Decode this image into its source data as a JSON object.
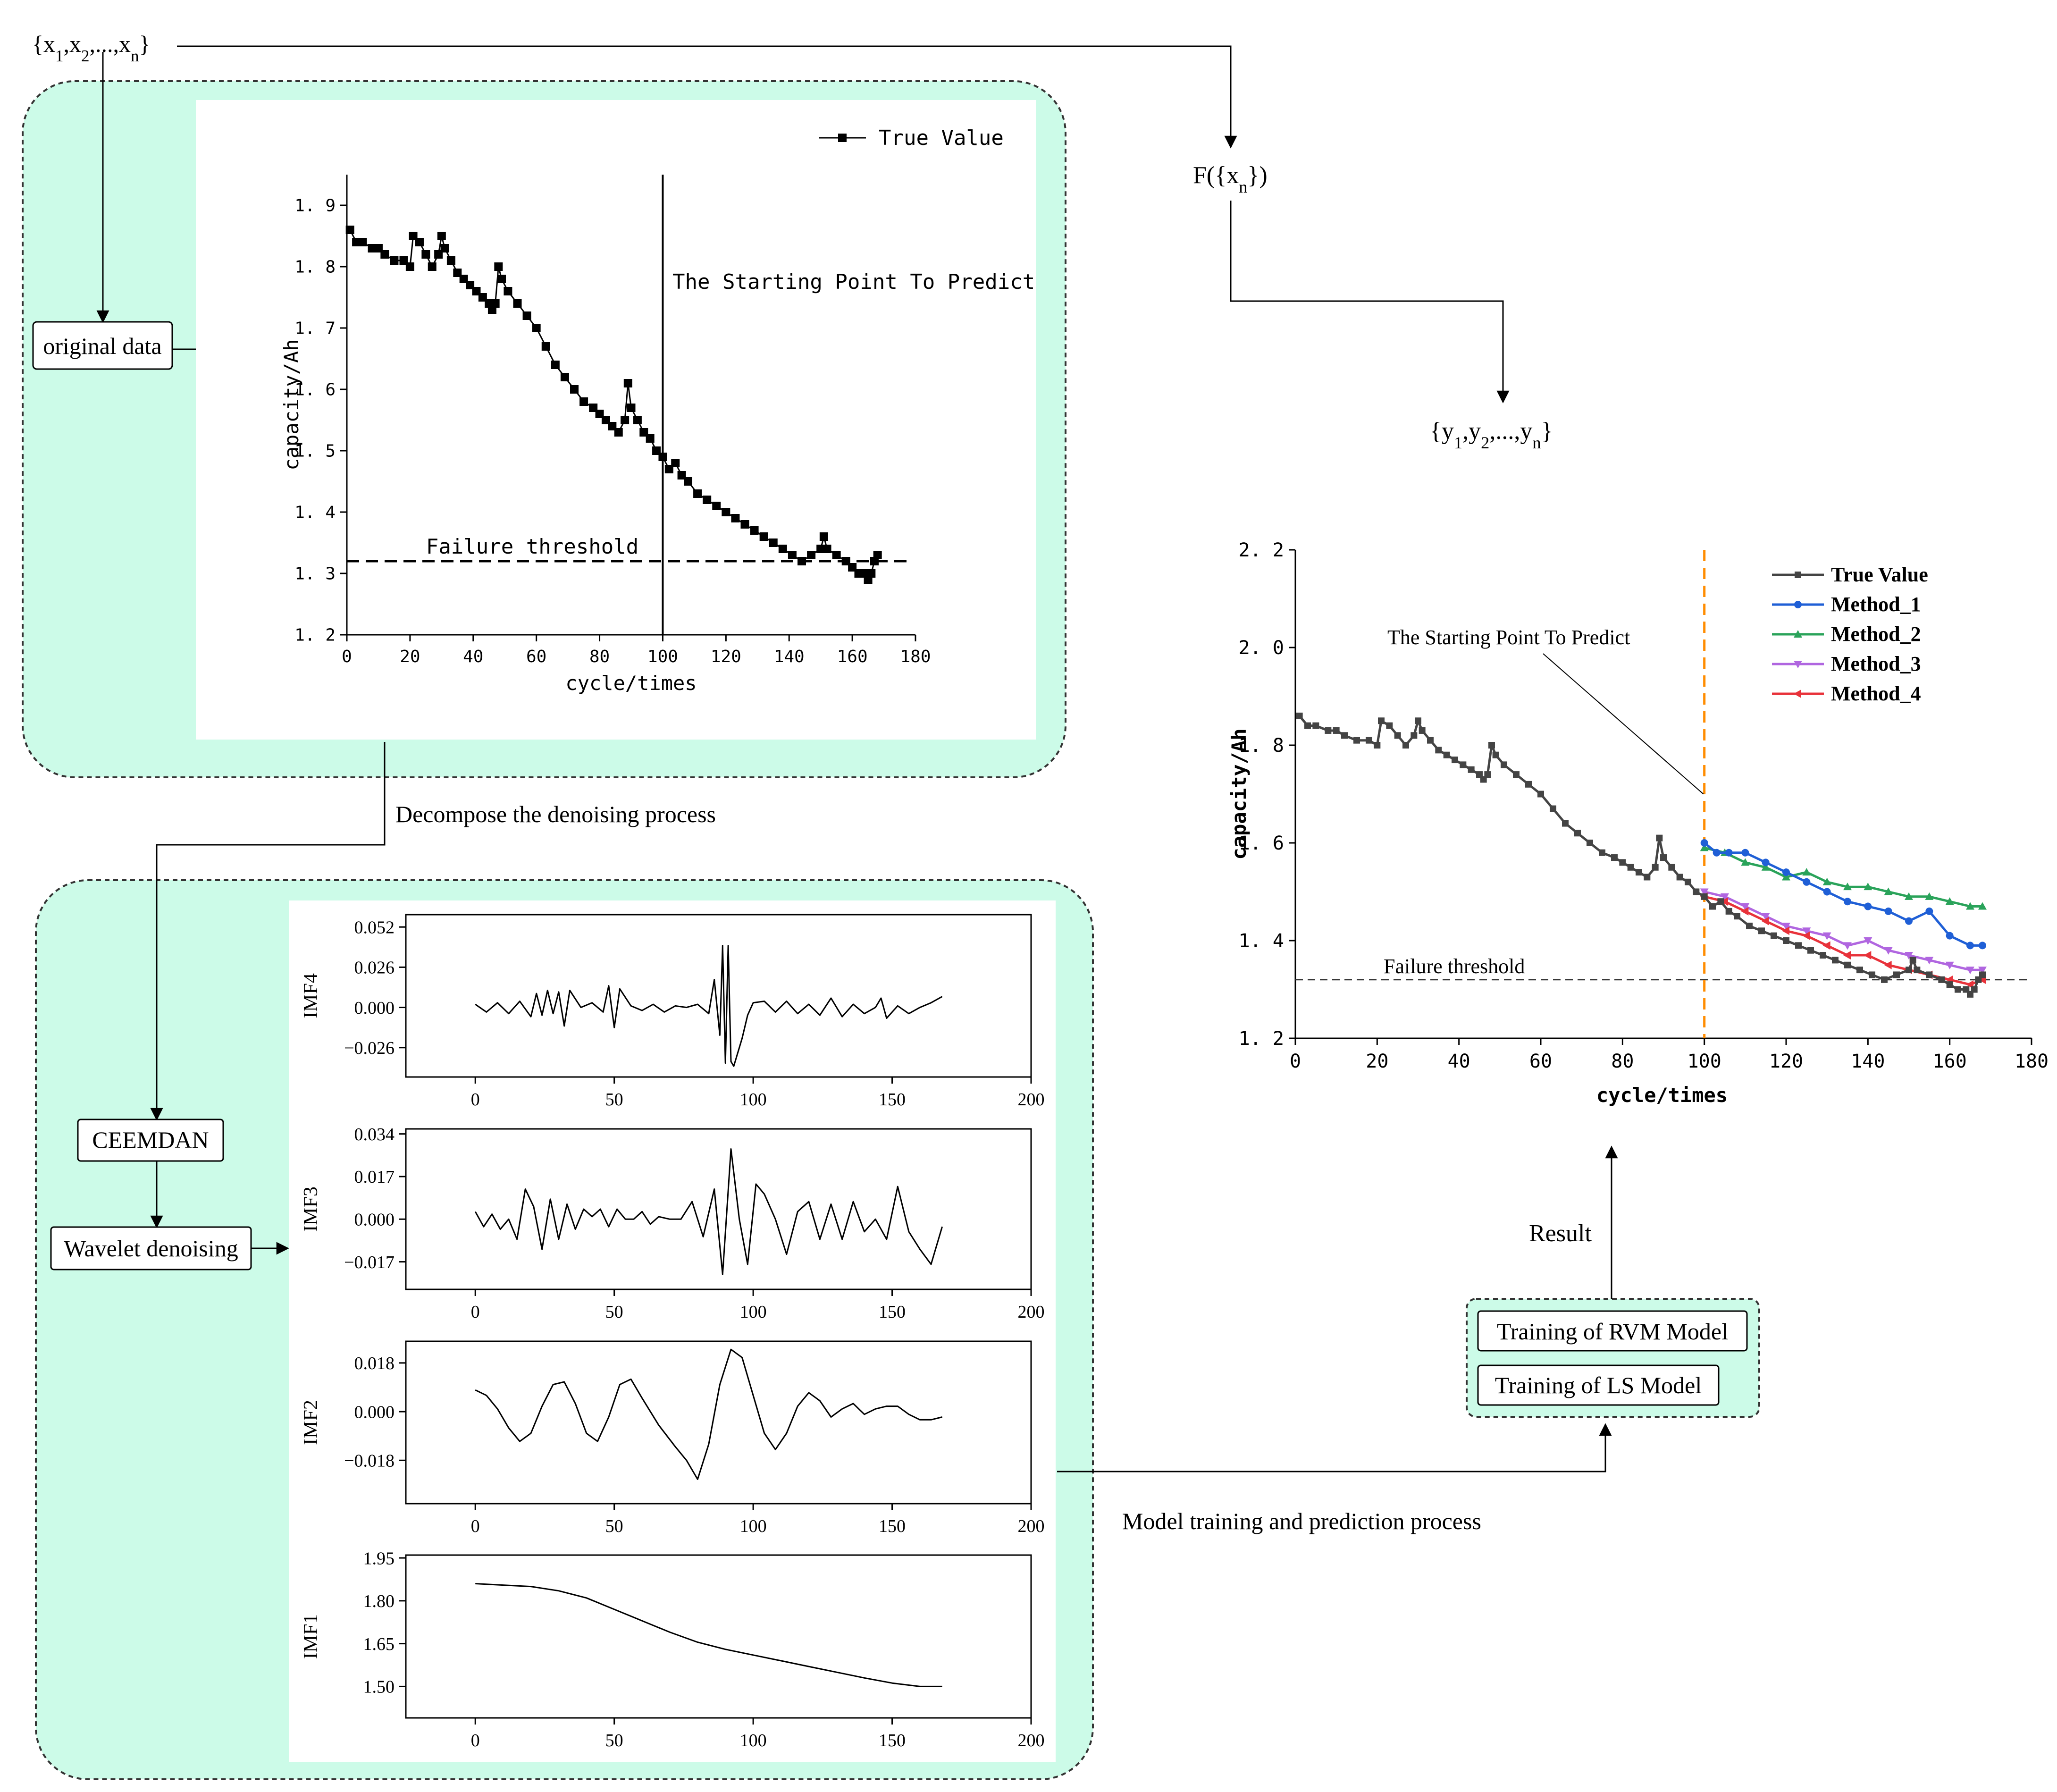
{
  "labels": {
    "input_set": "{x1,x2,...,xn}",
    "function": "F({xn})",
    "output_set": "{y1,y2,...,yn}",
    "original_data": "original data",
    "decompose": "Decompose the denoising process",
    "ceemdan": "CEEMDAN",
    "wavelet": "Wavelet denoising",
    "model_process": "Model training and prediction process",
    "result": "Result",
    "rvm": "Training of RVM Model",
    "ls": "Training of LS Model"
  },
  "colors": {
    "panel_fill": "#ccfbe8",
    "panel_border": "#333333",
    "true_value": "#444444",
    "method_1": "#1f5fd6",
    "method_2": "#2aa35a",
    "method_3": "#b066e0",
    "method_4": "#e8323a",
    "start_line_right": "#ff8c00"
  },
  "chart_data": [
    {
      "id": "original",
      "type": "scatter",
      "title": "",
      "xlabel": "cycle/times",
      "ylabel": "capacity/Ah",
      "xlim": [
        0,
        180
      ],
      "ylim": [
        1.2,
        1.95
      ],
      "xticks": [
        0,
        20,
        40,
        60,
        80,
        100,
        120,
        140,
        160,
        180
      ],
      "yticks": [
        1.2,
        1.3,
        1.4,
        1.5,
        1.6,
        1.7,
        1.8,
        1.9
      ],
      "legend": [
        "True Value"
      ],
      "annotations": {
        "start": "The Starting Point To Predict",
        "threshold": "Failure threshold"
      },
      "threshold": 1.32,
      "start_x": 100,
      "series": [
        {
          "name": "True Value",
          "x": [
            1,
            3,
            5,
            8,
            10,
            12,
            15,
            18,
            20,
            21,
            23,
            25,
            27,
            29,
            30,
            31,
            33,
            35,
            37,
            39,
            41,
            43,
            45,
            46,
            47,
            48,
            49,
            51,
            54,
            57,
            60,
            63,
            66,
            69,
            72,
            75,
            78,
            80,
            82,
            84,
            86,
            88,
            89,
            90,
            92,
            94,
            96,
            98,
            100,
            102,
            104,
            106,
            108,
            111,
            114,
            117,
            120,
            123,
            126,
            129,
            132,
            135,
            138,
            141,
            144,
            147,
            150,
            151,
            152,
            155,
            158,
            160,
            162,
            164,
            165,
            166,
            167,
            168
          ],
          "y": [
            1.86,
            1.84,
            1.84,
            1.83,
            1.83,
            1.82,
            1.81,
            1.81,
            1.8,
            1.85,
            1.84,
            1.82,
            1.8,
            1.82,
            1.85,
            1.83,
            1.81,
            1.79,
            1.78,
            1.77,
            1.76,
            1.75,
            1.74,
            1.73,
            1.74,
            1.8,
            1.78,
            1.76,
            1.74,
            1.72,
            1.7,
            1.67,
            1.64,
            1.62,
            1.6,
            1.58,
            1.57,
            1.56,
            1.55,
            1.54,
            1.53,
            1.55,
            1.61,
            1.57,
            1.55,
            1.53,
            1.52,
            1.5,
            1.49,
            1.47,
            1.48,
            1.46,
            1.45,
            1.43,
            1.42,
            1.41,
            1.4,
            1.39,
            1.38,
            1.37,
            1.36,
            1.35,
            1.34,
            1.33,
            1.32,
            1.33,
            1.34,
            1.36,
            1.34,
            1.33,
            1.32,
            1.31,
            1.3,
            1.3,
            1.29,
            1.3,
            1.32,
            1.33
          ]
        }
      ]
    },
    {
      "id": "imf4",
      "type": "line",
      "ylabel": "IMF4",
      "xlim": [
        -25,
        200
      ],
      "ylim": [
        -0.045,
        0.06
      ],
      "xticks": [
        0,
        50,
        100,
        150,
        200
      ],
      "yticks": [
        0.052,
        0.026,
        0.0,
        -0.026
      ],
      "ytick_labels": [
        "0.052",
        "0.026",
        "0.000",
        "−0.026"
      ],
      "series": [
        {
          "name": "IMF4",
          "x": [
            0,
            4,
            8,
            12,
            16,
            20,
            22,
            24,
            26,
            28,
            30,
            32,
            34,
            38,
            42,
            46,
            48,
            50,
            52,
            56,
            60,
            64,
            68,
            72,
            76,
            80,
            84,
            86,
            88,
            89,
            90,
            91,
            92,
            93,
            94,
            96,
            98,
            100,
            104,
            108,
            112,
            116,
            120,
            124,
            128,
            132,
            136,
            140,
            144,
            146,
            148,
            152,
            156,
            160,
            164,
            168
          ],
          "y": [
            0.002,
            -0.003,
            0.003,
            -0.004,
            0.004,
            -0.006,
            0.009,
            -0.005,
            0.011,
            -0.004,
            0.01,
            -0.012,
            0.011,
            0.0,
            0.003,
            -0.003,
            0.014,
            -0.013,
            0.012,
            0.001,
            -0.002,
            0.002,
            -0.003,
            0.001,
            0.0,
            0.002,
            -0.004,
            0.018,
            -0.018,
            0.04,
            -0.036,
            0.04,
            -0.035,
            -0.038,
            -0.032,
            -0.02,
            -0.005,
            0.003,
            0.004,
            -0.003,
            0.004,
            -0.004,
            0.002,
            -0.005,
            0.006,
            -0.006,
            0.002,
            -0.004,
            0.0,
            0.006,
            -0.007,
            0.001,
            -0.004,
            0.0,
            0.003,
            0.007
          ]
        }
      ]
    },
    {
      "id": "imf3",
      "type": "line",
      "ylabel": "IMF3",
      "xlim": [
        -25,
        200
      ],
      "ylim": [
        -0.028,
        0.036
      ],
      "xticks": [
        0,
        50,
        100,
        150,
        200
      ],
      "yticks": [
        0.034,
        0.017,
        0.0,
        -0.017
      ],
      "ytick_labels": [
        "0.034",
        "0.017",
        "0.000",
        "−0.017"
      ],
      "series": [
        {
          "name": "IMF3",
          "x": [
            0,
            3,
            6,
            9,
            12,
            15,
            18,
            21,
            24,
            27,
            30,
            33,
            36,
            39,
            42,
            45,
            48,
            51,
            54,
            57,
            60,
            63,
            66,
            70,
            74,
            78,
            82,
            86,
            89,
            92,
            95,
            98,
            101,
            104,
            108,
            112,
            116,
            120,
            124,
            128,
            132,
            136,
            140,
            144,
            148,
            152,
            156,
            160,
            164,
            168
          ],
          "y": [
            0.003,
            -0.003,
            0.002,
            -0.004,
            0.0,
            -0.008,
            0.012,
            0.005,
            -0.012,
            0.008,
            -0.008,
            0.006,
            -0.004,
            0.004,
            0.001,
            0.004,
            -0.003,
            0.004,
            0.0,
            0.0,
            0.003,
            -0.002,
            0.001,
            0.0,
            0.0,
            0.007,
            -0.007,
            0.012,
            -0.022,
            0.028,
            0.0,
            -0.018,
            0.014,
            0.01,
            0.0,
            -0.014,
            0.003,
            0.007,
            -0.008,
            0.006,
            -0.008,
            0.007,
            -0.005,
            0.0,
            -0.008,
            0.013,
            -0.005,
            -0.012,
            -0.018,
            -0.003
          ]
        }
      ]
    },
    {
      "id": "imf2",
      "type": "line",
      "ylabel": "IMF2",
      "xlim": [
        -25,
        200
      ],
      "ylim": [
        -0.034,
        0.026
      ],
      "xticks": [
        0,
        50,
        100,
        150,
        200
      ],
      "yticks": [
        0.018,
        0.0,
        -0.018
      ],
      "ytick_labels": [
        "0.018",
        "0.000",
        "−0.018"
      ],
      "series": [
        {
          "name": "IMF2",
          "x": [
            0,
            4,
            8,
            12,
            16,
            20,
            24,
            28,
            32,
            36,
            40,
            44,
            48,
            52,
            56,
            60,
            66,
            72,
            76,
            80,
            84,
            88,
            92,
            96,
            100,
            104,
            108,
            112,
            116,
            120,
            124,
            128,
            132,
            136,
            140,
            144,
            148,
            152,
            156,
            160,
            164,
            168
          ],
          "y": [
            0.008,
            0.006,
            0.001,
            -0.006,
            -0.011,
            -0.008,
            0.002,
            0.01,
            0.011,
            0.003,
            -0.008,
            -0.011,
            -0.002,
            0.01,
            0.012,
            0.005,
            -0.005,
            -0.013,
            -0.018,
            -0.025,
            -0.012,
            0.01,
            0.023,
            0.02,
            0.006,
            -0.008,
            -0.014,
            -0.008,
            0.002,
            0.007,
            0.004,
            -0.002,
            0.001,
            0.003,
            -0.001,
            0.001,
            0.002,
            0.002,
            -0.001,
            -0.003,
            -0.003,
            -0.002
          ]
        }
      ]
    },
    {
      "id": "imf1",
      "type": "line",
      "ylabel": "IMF1",
      "xlim": [
        -25,
        200
      ],
      "ylim": [
        1.39,
        1.96
      ],
      "xticks": [
        0,
        50,
        100,
        150,
        200
      ],
      "yticks": [
        1.95,
        1.8,
        1.65,
        1.5
      ],
      "ytick_labels": [
        "1.95",
        "1.80",
        "1.65",
        "1.50"
      ],
      "series": [
        {
          "name": "IMF1",
          "x": [
            0,
            10,
            20,
            30,
            40,
            50,
            60,
            70,
            80,
            90,
            100,
            110,
            120,
            130,
            140,
            150,
            160,
            168
          ],
          "y": [
            1.86,
            1.855,
            1.85,
            1.835,
            1.81,
            1.77,
            1.73,
            1.69,
            1.655,
            1.63,
            1.61,
            1.59,
            1.57,
            1.55,
            1.53,
            1.512,
            1.5,
            1.5
          ]
        }
      ]
    },
    {
      "id": "result",
      "type": "line",
      "xlabel": "cycle/times",
      "ylabel": "capacity/Ah",
      "xlim": [
        0,
        180
      ],
      "ylim": [
        1.2,
        2.2
      ],
      "xticks": [
        0,
        20,
        40,
        60,
        80,
        100,
        120,
        140,
        160,
        180
      ],
      "yticks": [
        1.2,
        1.4,
        1.6,
        1.8,
        2.0,
        2.2
      ],
      "ytick_labels": [
        "1. 2",
        "1. 4",
        "1. 6",
        "1. 8",
        "2. 0",
        "2. 2"
      ],
      "annotations": {
        "start": "The Starting Point To Predict",
        "threshold": "Failure threshold"
      },
      "threshold": 1.32,
      "start_x": 100,
      "legend": [
        "True Value",
        "Method_1",
        "Method_2",
        "Method_3",
        "Method_4"
      ],
      "series": [
        {
          "name": "True Value",
          "x": [
            1,
            3,
            5,
            8,
            10,
            12,
            15,
            18,
            20,
            21,
            23,
            25,
            27,
            29,
            30,
            31,
            33,
            35,
            37,
            39,
            41,
            43,
            45,
            46,
            47,
            48,
            49,
            51,
            54,
            57,
            60,
            63,
            66,
            69,
            72,
            75,
            78,
            80,
            82,
            84,
            86,
            88,
            89,
            90,
            92,
            94,
            96,
            98,
            100,
            102,
            104,
            106,
            108,
            111,
            114,
            117,
            120,
            123,
            126,
            129,
            132,
            135,
            138,
            141,
            144,
            147,
            150,
            151,
            152,
            155,
            158,
            160,
            162,
            164,
            165,
            166,
            167,
            168
          ],
          "y": [
            1.86,
            1.84,
            1.84,
            1.83,
            1.83,
            1.82,
            1.81,
            1.81,
            1.8,
            1.85,
            1.84,
            1.82,
            1.8,
            1.82,
            1.85,
            1.83,
            1.81,
            1.79,
            1.78,
            1.77,
            1.76,
            1.75,
            1.74,
            1.73,
            1.74,
            1.8,
            1.78,
            1.76,
            1.74,
            1.72,
            1.7,
            1.67,
            1.64,
            1.62,
            1.6,
            1.58,
            1.57,
            1.56,
            1.55,
            1.54,
            1.53,
            1.55,
            1.61,
            1.57,
            1.55,
            1.53,
            1.52,
            1.5,
            1.49,
            1.47,
            1.48,
            1.46,
            1.45,
            1.43,
            1.42,
            1.41,
            1.4,
            1.39,
            1.38,
            1.37,
            1.36,
            1.35,
            1.34,
            1.33,
            1.32,
            1.33,
            1.34,
            1.36,
            1.34,
            1.33,
            1.32,
            1.31,
            1.3,
            1.3,
            1.29,
            1.3,
            1.32,
            1.33
          ]
        },
        {
          "name": "Method_1",
          "x": [
            100,
            103,
            106,
            110,
            115,
            120,
            125,
            130,
            135,
            140,
            145,
            150,
            155,
            160,
            165,
            168
          ],
          "y": [
            1.6,
            1.58,
            1.58,
            1.58,
            1.56,
            1.54,
            1.52,
            1.5,
            1.48,
            1.47,
            1.46,
            1.44,
            1.46,
            1.41,
            1.39,
            1.39
          ]
        },
        {
          "name": "Method_2",
          "x": [
            100,
            105,
            110,
            115,
            120,
            125,
            130,
            135,
            140,
            145,
            150,
            155,
            160,
            165,
            168
          ],
          "y": [
            1.59,
            1.58,
            1.56,
            1.55,
            1.53,
            1.54,
            1.52,
            1.51,
            1.51,
            1.5,
            1.49,
            1.49,
            1.48,
            1.47,
            1.47
          ]
        },
        {
          "name": "Method_3",
          "x": [
            100,
            105,
            110,
            115,
            120,
            125,
            130,
            135,
            140,
            145,
            150,
            155,
            160,
            165,
            168
          ],
          "y": [
            1.5,
            1.49,
            1.47,
            1.45,
            1.43,
            1.42,
            1.41,
            1.39,
            1.4,
            1.38,
            1.37,
            1.36,
            1.35,
            1.34,
            1.34
          ]
        },
        {
          "name": "Method_4",
          "x": [
            100,
            105,
            110,
            115,
            120,
            125,
            130,
            135,
            140,
            145,
            150,
            155,
            160,
            165,
            168
          ],
          "y": [
            1.49,
            1.48,
            1.46,
            1.44,
            1.42,
            1.41,
            1.39,
            1.37,
            1.37,
            1.35,
            1.34,
            1.33,
            1.32,
            1.31,
            1.32
          ]
        }
      ]
    }
  ]
}
